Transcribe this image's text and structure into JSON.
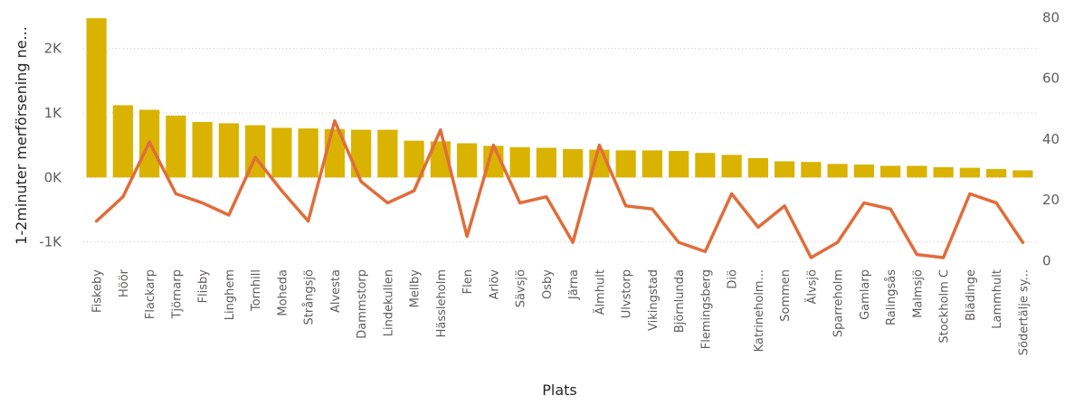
{
  "chart_data": {
    "type": "bar",
    "xlabel": "Plats",
    "ylabel": "1-2minuter merförsening ne...",
    "categories": [
      "Fiskeby",
      "Höör",
      "Flackarp",
      "Tjörnarp",
      "Flisby",
      "Linghem",
      "Tornhill",
      "Moheda",
      "Strångsjö",
      "Alvesta",
      "Dammstorp",
      "Lindekullen",
      "Mellby",
      "Hässleholm",
      "Flen",
      "Arlöv",
      "Sävsjö",
      "Osby",
      "Järna",
      "Älmhult",
      "Ulvstorp",
      "Vikingstad",
      "Björnlunda",
      "Flemingsberg",
      "Diö",
      "Katrineholm...",
      "Sommen",
      "Älvsjö",
      "Sparreholm",
      "Gamlarp",
      "Ralingsås",
      "Malmsjö",
      "Stockholm C",
      "Blädinge",
      "Lammhult",
      "Södertälje sy..."
    ],
    "series": [
      {
        "kind": "bar",
        "axis": "left",
        "color": "#d9b300",
        "values": [
          2470,
          1120,
          1050,
          960,
          860,
          840,
          810,
          770,
          760,
          750,
          740,
          740,
          570,
          560,
          530,
          490,
          470,
          460,
          440,
          430,
          420,
          420,
          410,
          380,
          350,
          300,
          250,
          240,
          210,
          200,
          180,
          180,
          160,
          150,
          130,
          110
        ]
      },
      {
        "kind": "line",
        "axis": "right",
        "color": "#e06d3a",
        "values": [
          13,
          21,
          39,
          22,
          19,
          15,
          34,
          23,
          13,
          46,
          26,
          19,
          23,
          43,
          8,
          38,
          19,
          21,
          6,
          38,
          18,
          17,
          6,
          3,
          22,
          11,
          18,
          1,
          6,
          19,
          17,
          2,
          1,
          22,
          19,
          6
        ]
      }
    ],
    "y_left": {
      "min": -1300,
      "max": 2500,
      "ticks": [
        -1000,
        0,
        1000,
        2000
      ],
      "tick_labels": [
        "-1K",
        "0K",
        "1K",
        "2K"
      ]
    },
    "y_right": {
      "min": -0.5,
      "max": 81,
      "ticks": [
        0,
        20,
        40,
        60,
        80
      ],
      "tick_labels": [
        "0",
        "20",
        "40",
        "60",
        "80"
      ]
    },
    "grid": true
  }
}
